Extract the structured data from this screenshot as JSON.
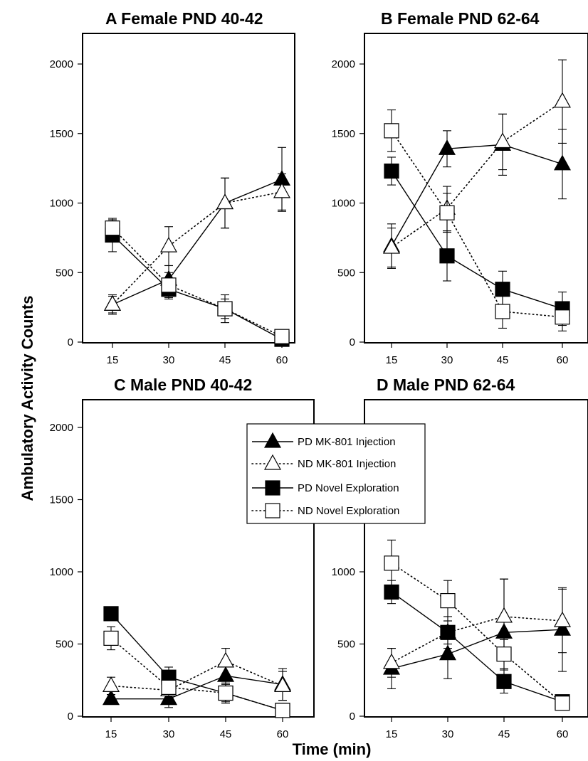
{
  "figure": {
    "ylabel": "Ambulatory Activity Counts",
    "xlabel": "Time (min)"
  },
  "legend": [
    {
      "label": "PD MK-801 Injection",
      "marker": "triangle",
      "filled": true,
      "line": "solid"
    },
    {
      "label": "ND MK-801 Injection",
      "marker": "triangle",
      "filled": false,
      "line": "dotted"
    },
    {
      "label": "PD Novel Exploration",
      "marker": "square",
      "filled": true,
      "line": "solid"
    },
    {
      "label": "ND Novel Exploration",
      "marker": "square",
      "filled": false,
      "line": "dotted"
    }
  ],
  "colors": {
    "axes": "#000000",
    "filled_marker": "#000000",
    "open_marker": "#ffffff"
  },
  "chart_data": [
    {
      "type": "line",
      "letter": "A",
      "title": "Female PND 40-42",
      "x": [
        15,
        30,
        45,
        60
      ],
      "xticks": [
        "15",
        "30",
        "45",
        "60"
      ],
      "yticks": [
        "0",
        "500",
        "1000",
        "1500",
        "2000"
      ],
      "ylim": [
        0,
        2200
      ],
      "series": [
        {
          "name": "PD MK-801 Injection",
          "values": [
            270,
            450,
            1000,
            1170
          ],
          "err": [
            70,
            100,
            180,
            230
          ]
        },
        {
          "name": "ND MK-801 Injection",
          "values": [
            270,
            690,
            1000,
            1080
          ],
          "err": [
            60,
            140,
            180,
            130
          ]
        },
        {
          "name": "PD Novel Exploration",
          "values": [
            770,
            380,
            240,
            20
          ],
          "err": [
            120,
            70,
            70,
            0
          ]
        },
        {
          "name": "ND Novel Exploration",
          "values": [
            820,
            410,
            240,
            40
          ],
          "err": [
            60,
            90,
            100,
            0
          ]
        }
      ]
    },
    {
      "type": "line",
      "letter": "B",
      "title": "Female PND 62-64",
      "x": [
        15,
        30,
        45,
        60
      ],
      "xticks": [
        "15",
        "30",
        "45",
        "60"
      ],
      "yticks": [
        "0",
        "500",
        "1000",
        "1500",
        "2000"
      ],
      "ylim": [
        0,
        2200
      ],
      "series": [
        {
          "name": "PD MK-801 Injection",
          "values": [
            690,
            1390,
            1420,
            1280
          ],
          "err": [
            160,
            130,
            220,
            250
          ]
        },
        {
          "name": "ND MK-801 Injection",
          "values": [
            680,
            960,
            1440,
            1730
          ],
          "err": [
            140,
            160,
            200,
            300
          ]
        },
        {
          "name": "PD Novel Exploration",
          "values": [
            1230,
            620,
            380,
            240
          ],
          "err": [
            100,
            180,
            130,
            120
          ]
        },
        {
          "name": "ND Novel Exploration",
          "values": [
            1520,
            930,
            220,
            180
          ],
          "err": [
            150,
            140,
            120,
            100
          ]
        }
      ]
    },
    {
      "type": "line",
      "letter": "C",
      "title": "Male PND 40-42",
      "x": [
        15,
        30,
        45,
        60
      ],
      "xticks": [
        "15",
        "30",
        "45",
        "60"
      ],
      "yticks": [
        "0",
        "500",
        "1000",
        "1500",
        "2000"
      ],
      "ylim": [
        0,
        2200
      ],
      "series": [
        {
          "name": "PD MK-801 Injection",
          "values": [
            120,
            120,
            280,
            220
          ],
          "err": [
            30,
            60,
            90,
            110
          ]
        },
        {
          "name": "ND MK-801 Injection",
          "values": [
            210,
            180,
            380,
            210
          ],
          "err": [
            60,
            60,
            90,
            100
          ]
        },
        {
          "name": "PD Novel Exploration",
          "values": [
            710,
            270,
            160,
            40
          ],
          "err": [
            20,
            70,
            70,
            0
          ]
        },
        {
          "name": "ND Novel Exploration",
          "values": [
            540,
            200,
            160,
            40
          ],
          "err": [
            80,
            70,
            60,
            0
          ]
        }
      ]
    },
    {
      "type": "line",
      "letter": "D",
      "title": "Male PND 62-64",
      "x": [
        15,
        30,
        45,
        60
      ],
      "xticks": [
        "15",
        "30",
        "45",
        "60"
      ],
      "yticks": [
        "0",
        "500",
        "1000"
      ],
      "ylim": [
        0,
        2200
      ],
      "series": [
        {
          "name": "PD MK-801 Injection",
          "values": [
            330,
            430,
            580,
            600
          ],
          "err": [
            140,
            170,
            370,
            290
          ]
        },
        {
          "name": "ND MK-801 Injection",
          "values": [
            370,
            580,
            690,
            660
          ],
          "err": [
            100,
            110,
            260,
            220
          ]
        },
        {
          "name": "PD Novel Exploration",
          "values": [
            860,
            580,
            240,
            100
          ],
          "err": [
            80,
            80,
            80,
            40
          ]
        },
        {
          "name": "ND Novel Exploration",
          "values": [
            1060,
            800,
            430,
            90
          ],
          "err": [
            160,
            140,
            100,
            30
          ]
        }
      ]
    }
  ]
}
